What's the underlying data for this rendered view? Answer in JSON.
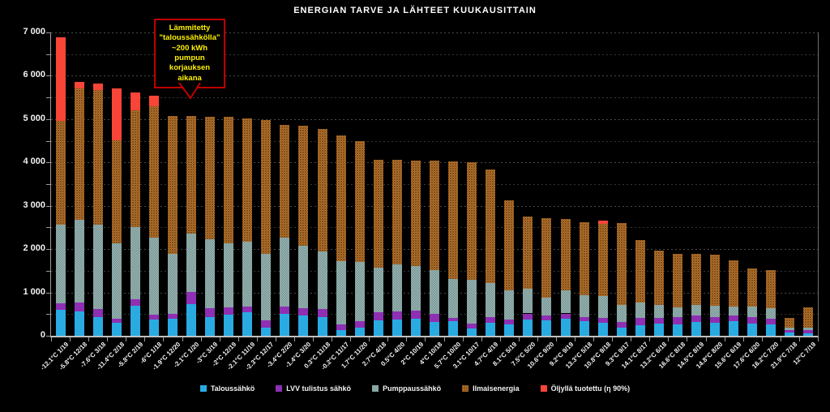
{
  "title": "ENERGIAN TARVE JA LÄHTEET KUUKAUSITTAIN",
  "annotation": {
    "text": "Lämmitetty\n\"taloussähkölla\"\n~200 kWh\npumpun\nkorjauksen\naikana"
  },
  "colors": {
    "background": "#000000",
    "text": "#F2F2F2",
    "axis": "#9C9C9C",
    "gridline": "#363636",
    "gridline_major": "#4A4A4A",
    "talous": "#29ABE2",
    "lvv": "#8E2FB4",
    "pumppaus_base": "#3C7077",
    "pumppaus_dot": "#AEC0BA",
    "ilmais_base": "#DFA23B",
    "ilmais_dot": "#94501C",
    "ilmais_dot2": "#5C2E10",
    "oljy": "#F94438",
    "annotation_border": "#C00000",
    "annotation_text": "#FFF200"
  },
  "chart_data": {
    "type": "bar",
    "stacked": true,
    "title": "ENERGIAN TARVE JA LÄHTEET KUUKAUSITTAIN",
    "ylabel": "",
    "xlabel": "",
    "ylim": [
      0,
      7000
    ],
    "ytick_step": 1000,
    "grid": true,
    "legend_position": "bottom",
    "y_tick_labels": [
      "0",
      "1 000",
      "2 000",
      "3 000",
      "4 000",
      "5 000",
      "6 000",
      "7 000"
    ],
    "categories": [
      "-12.1°C 1/19",
      "-5.8°C 12/18",
      "-7.6°C 3/18",
      "-11.4°C 2/18",
      "-5.8°C 2/19",
      "-6°C 1/18",
      "-1.9°C 12/20",
      "-2.1°C 1/20",
      "-3°C 3/19",
      "-2°C 12/19",
      "-2.1°C 11/19",
      "-2.3°C 12/17",
      "-3.4°C 2/20",
      "-1.4°C 3/20",
      "0.3°C 11/18",
      "-0.2°C 11/17",
      "1.7°C 11/20",
      "2.7°C 4/18",
      "0.5°C 4/20",
      "2°C 10/19",
      "4°C 10/18",
      "5.7°C 10/20",
      "3.1°C 10/17",
      "4.7°C 4/19",
      "8.1°C 5/19",
      "7.5°C 5/20",
      "10.6°C 9/20",
      "9.2°C 9/19",
      "13.3°C 5/18",
      "10.8°C 9/18",
      "9.3°C 9/17",
      "14.1°C 8/17",
      "13.2°C 6/18",
      "16.6°C 8/18",
      "14.5°C 8/19",
      "14.8°C 8/20",
      "15.6°C 6/19",
      "17.6°C 6/20",
      "16.2°C 7/20",
      "21.9°C 7/18",
      "12°C 7/19"
    ],
    "series": [
      {
        "name": "Taloussähkö",
        "color_key": "talous",
        "values": [
          590,
          560,
          430,
          305,
          700,
          380,
          390,
          725,
          440,
          490,
          535,
          190,
          505,
          475,
          430,
          140,
          190,
          350,
          380,
          390,
          315,
          330,
          160,
          305,
          255,
          380,
          350,
          390,
          330,
          305,
          190,
          235,
          285,
          265,
          315,
          305,
          330,
          285,
          265,
          80,
          65
        ]
      },
      {
        "name": "LVV tulistus sähkö",
        "color_key": "lvv",
        "values": [
          150,
          210,
          190,
          80,
          140,
          110,
          115,
          280,
          190,
          170,
          145,
          160,
          175,
          170,
          180,
          115,
          140,
          185,
          190,
          190,
          190,
          80,
          125,
          135,
          125,
          135,
          125,
          125,
          110,
          105,
          125,
          180,
          125,
          175,
          160,
          135,
          145,
          155,
          125,
          50,
          75
        ]
      },
      {
        "name": "Pumppaussähkö",
        "color_key": "pumppaus",
        "values": [
          1830,
          1900,
          1950,
          1755,
          1660,
          1770,
          1395,
          1350,
          1600,
          1475,
          1485,
          1535,
          1580,
          1430,
          1335,
          1470,
          1365,
          1035,
          1075,
          1025,
          1015,
          900,
          1005,
          770,
          660,
          565,
          405,
          525,
          505,
          505,
          390,
          355,
          295,
          220,
          230,
          255,
          205,
          240,
          240,
          50,
          40
        ]
      },
      {
        "name": "Ilmaisenergia",
        "color_key": "ilmais",
        "values": [
          2390,
          3040,
          3100,
          2380,
          2710,
          3040,
          3165,
          2710,
          2820,
          2915,
          2855,
          3095,
          2605,
          2775,
          2825,
          2905,
          2795,
          2490,
          2415,
          2445,
          2530,
          2720,
          2710,
          2630,
          2080,
          1670,
          1835,
          1660,
          1680,
          1660,
          1900,
          1445,
          1255,
          1235,
          1180,
          1175,
          1065,
          870,
          880,
          230,
          480
        ]
      },
      {
        "name": "Öljyllä tuotettu (η 90%)",
        "color_key": "oljy",
        "values": [
          1920,
          150,
          150,
          1180,
          410,
          240,
          0,
          0,
          0,
          0,
          0,
          0,
          0,
          0,
          0,
          0,
          0,
          0,
          0,
          0,
          0,
          0,
          0,
          0,
          0,
          0,
          0,
          0,
          0,
          75,
          0,
          0,
          0,
          0,
          0,
          0,
          0,
          0,
          0,
          0,
          0
        ]
      }
    ]
  }
}
